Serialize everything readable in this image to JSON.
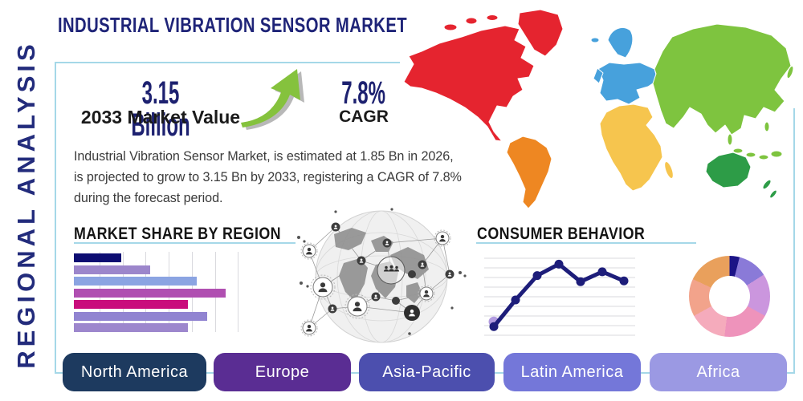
{
  "page": {
    "title": "INDUSTRIAL VIBRATION SENSOR MARKET",
    "side_label": "REGIONAL ANALYSIS"
  },
  "stats": {
    "market_value": "3.15 Billion",
    "market_value_label": "2033 Market Value",
    "cagr_value": "7.8%",
    "cagr_label": "CAGR"
  },
  "description": "Industrial Vibration Sensor Market, is estimated at 1.85 Bn in 2026, is projected to grow to 3.15 Bn by 2033, registering a CAGR of 7.8% during the forecast period.",
  "sections": {
    "market_share_title": "MARKET SHARE BY REGION",
    "consumer_behavior_title": "CONSUMER BEHAVIOR"
  },
  "regions": [
    {
      "label": "North America",
      "color": "#1d3a5f"
    },
    {
      "label": "Europe",
      "color": "#5a2d93"
    },
    {
      "label": "Asia-Pacific",
      "color": "#4c4fae"
    },
    {
      "label": "Latin America",
      "color": "#7477d9"
    },
    {
      "label": "Africa",
      "color": "#9b99e3"
    }
  ],
  "map": {
    "colors": {
      "north_america": "#e5242f",
      "south_america": "#ee8722",
      "europe": "#47a1dc",
      "africa": "#f6c54e",
      "asia": "#7ec43f",
      "australia": "#2d9c47"
    }
  },
  "theme": {
    "frame_border": "#a5d8e8",
    "heading_navy": "#1f2478",
    "body_text": "#3b3b3b",
    "arrow_green": "#85c23d",
    "arrow_shadow": "#9a9a9a"
  },
  "chart_data": [
    {
      "type": "bar",
      "title": "MARKET SHARE BY REGION",
      "orientation": "horizontal",
      "axis_labels_visible": false,
      "values": [
        31,
        50,
        81,
        100,
        75,
        88,
        75
      ],
      "value_note": "relative lengths, longest bar = 100",
      "colors": [
        "#0d0d72",
        "#9c86cb",
        "#8ba4e2",
        "#b04fb1",
        "#c90c7c",
        "#9184d1",
        "#9d87cd"
      ],
      "gridlines": 7,
      "grid_color": "#d9d9de"
    },
    {
      "type": "line",
      "title": "CONSUMER BEHAVIOR",
      "axis_labels_visible": false,
      "x": [
        1,
        2,
        3,
        4,
        5,
        6,
        7
      ],
      "values": [
        5,
        40,
        72,
        87,
        64,
        77,
        65
      ],
      "ylim": [
        0,
        100
      ],
      "line_color": "#1d1d7a",
      "halo_color": "#b29ce0",
      "gridlines": 9,
      "grid_color": "#d9d9de"
    },
    {
      "type": "pie",
      "subtype": "donut",
      "title": "",
      "values": [
        4,
        12,
        17,
        19,
        15,
        15,
        18
      ],
      "value_note": "percent of ring, clockwise from top",
      "colors": [
        "#1c1487",
        "#8a7ad8",
        "#cb96de",
        "#ee93bb",
        "#f5abbc",
        "#f2a38b",
        "#e9a05c"
      ]
    }
  ]
}
